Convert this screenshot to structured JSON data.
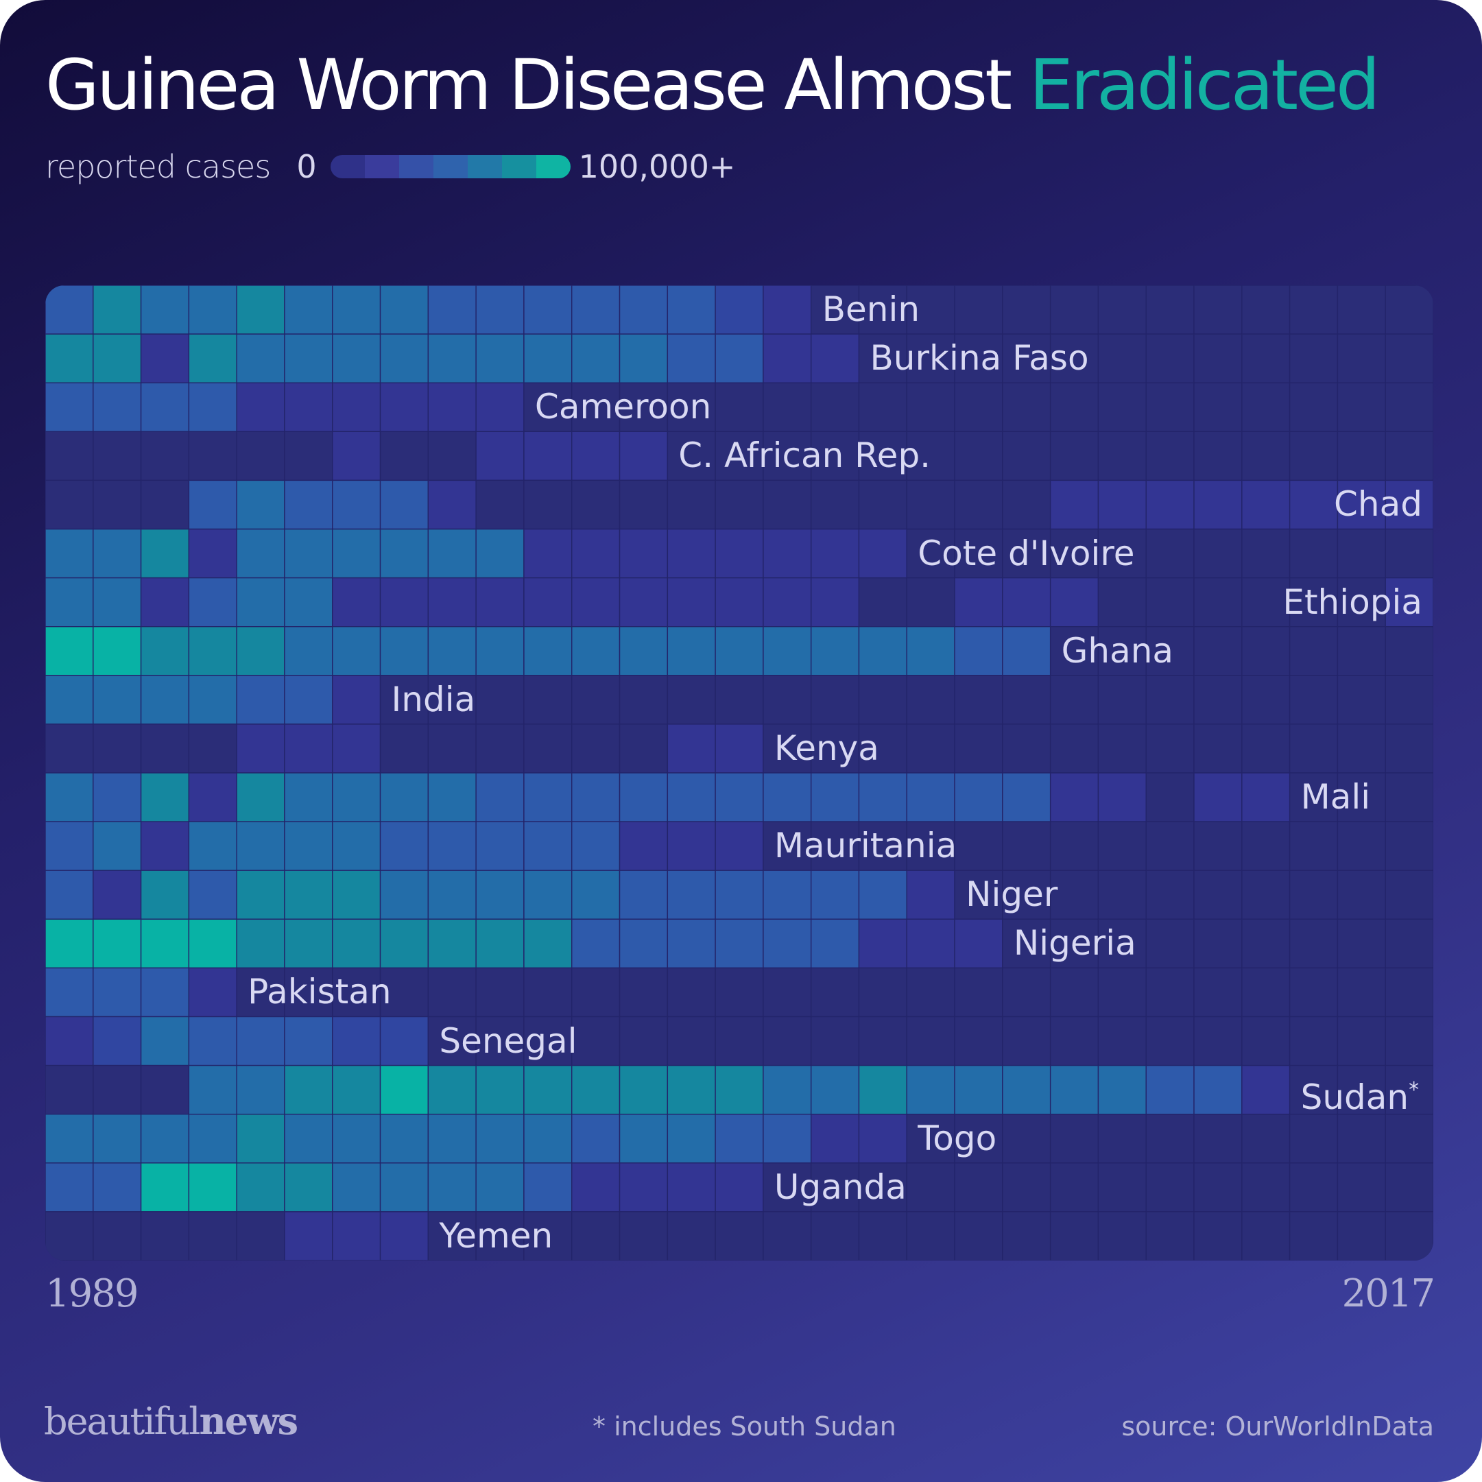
{
  "title": {
    "main": "Guinea Worm Disease Almost ",
    "accent": "Eradicated"
  },
  "legend": {
    "label": "reported cases",
    "min": "0",
    "max": "100,000+",
    "colors": [
      "#2f3189",
      "#3a3c9c",
      "#3551a8",
      "#2f63ad",
      "#2279a8",
      "#16909f",
      "#0fb4a3"
    ]
  },
  "palette": {
    "card_top": "#120c3a",
    "card_bottom": "#3f44a4",
    "accent": "#13b1a2",
    "level_colors": [
      "#2b2d78",
      "#333593",
      "#3046a1",
      "#2e5aab",
      "#236da9",
      "#15879f",
      "#08b2a5"
    ]
  },
  "chart_data": {
    "type": "heatmap",
    "title": "Guinea Worm Disease Almost Eradicated",
    "x_range": [
      1989,
      2017
    ],
    "x_labels": [
      "1989",
      "2017"
    ],
    "value_scale": "binned reported cases, level 0 (0) to 6 (100,000+)",
    "rows": [
      {
        "name": "Benin",
        "levels": [
          3,
          5,
          4,
          4,
          5,
          4,
          4,
          4,
          3,
          3,
          3,
          3,
          3,
          3,
          2,
          1,
          0,
          0,
          0,
          0,
          0,
          0,
          0,
          0,
          0,
          0,
          0,
          0,
          0
        ]
      },
      {
        "name": "Burkina Faso",
        "levels": [
          5,
          5,
          1,
          5,
          4,
          4,
          4,
          4,
          4,
          4,
          4,
          4,
          4,
          3,
          3,
          1,
          1,
          0,
          0,
          0,
          0,
          0,
          0,
          0,
          0,
          0,
          0,
          0,
          0
        ]
      },
      {
        "name": "Cameroon",
        "levels": [
          3,
          3,
          3,
          3,
          1,
          1,
          1,
          1,
          1,
          1,
          0,
          0,
          0,
          0,
          0,
          0,
          0,
          0,
          0,
          0,
          0,
          0,
          0,
          0,
          0,
          0,
          0,
          0,
          0
        ]
      },
      {
        "name": "C. African Rep.",
        "levels": [
          0,
          0,
          0,
          0,
          0,
          0,
          1,
          0,
          0,
          1,
          1,
          1,
          1,
          0,
          0,
          0,
          0,
          0,
          0,
          0,
          0,
          0,
          0,
          0,
          0,
          0,
          0,
          0,
          0
        ]
      },
      {
        "name": "Chad",
        "levels": [
          0,
          0,
          0,
          3,
          4,
          3,
          3,
          3,
          1,
          0,
          0,
          0,
          0,
          0,
          0,
          0,
          0,
          0,
          0,
          0,
          0,
          1,
          1,
          1,
          1,
          1,
          1,
          1,
          1
        ]
      },
      {
        "name": "Cote d'Ivoire",
        "levels": [
          4,
          4,
          5,
          1,
          4,
          4,
          4,
          4,
          4,
          4,
          1,
          1,
          1,
          1,
          1,
          1,
          1,
          1,
          0,
          0,
          0,
          0,
          0,
          0,
          0,
          0,
          0,
          0,
          0
        ]
      },
      {
        "name": "Ethiopia",
        "levels": [
          4,
          4,
          1,
          3,
          4,
          4,
          1,
          1,
          1,
          1,
          1,
          1,
          1,
          1,
          1,
          1,
          1,
          0,
          0,
          1,
          1,
          1,
          0,
          0,
          0,
          0,
          0,
          0,
          1
        ]
      },
      {
        "name": "Ghana",
        "levels": [
          6,
          6,
          5,
          5,
          5,
          4,
          4,
          4,
          4,
          4,
          4,
          4,
          4,
          4,
          4,
          4,
          4,
          4,
          4,
          3,
          3,
          0,
          0,
          0,
          0,
          0,
          0,
          0,
          0
        ]
      },
      {
        "name": "India",
        "levels": [
          4,
          4,
          4,
          4,
          3,
          3,
          1,
          0,
          0,
          0,
          0,
          0,
          0,
          0,
          0,
          0,
          0,
          0,
          0,
          0,
          0,
          0,
          0,
          0,
          0,
          0,
          0,
          0,
          0
        ]
      },
      {
        "name": "Kenya",
        "levels": [
          0,
          0,
          0,
          0,
          1,
          1,
          1,
          0,
          0,
          0,
          0,
          0,
          0,
          1,
          1,
          0,
          0,
          0,
          0,
          0,
          0,
          0,
          0,
          0,
          0,
          0,
          0,
          0,
          0
        ]
      },
      {
        "name": "Mali",
        "levels": [
          4,
          3,
          5,
          1,
          5,
          4,
          4,
          4,
          4,
          3,
          3,
          3,
          3,
          3,
          3,
          3,
          3,
          3,
          3,
          3,
          3,
          1,
          1,
          0,
          1,
          1,
          0,
          0,
          0
        ]
      },
      {
        "name": "Mauritania",
        "levels": [
          3,
          4,
          1,
          4,
          4,
          4,
          4,
          3,
          3,
          3,
          3,
          3,
          1,
          1,
          1,
          0,
          0,
          0,
          0,
          0,
          0,
          0,
          0,
          0,
          0,
          0,
          0,
          0,
          0
        ]
      },
      {
        "name": "Niger",
        "levels": [
          3,
          1,
          5,
          3,
          5,
          5,
          5,
          4,
          4,
          4,
          4,
          4,
          3,
          3,
          3,
          3,
          3,
          3,
          1,
          0,
          0,
          0,
          0,
          0,
          0,
          0,
          0,
          0,
          0
        ]
      },
      {
        "name": "Nigeria",
        "levels": [
          6,
          6,
          6,
          6,
          5,
          5,
          5,
          5,
          5,
          5,
          5,
          3,
          3,
          3,
          3,
          3,
          3,
          1,
          1,
          1,
          0,
          0,
          0,
          0,
          0,
          0,
          0,
          0,
          0
        ]
      },
      {
        "name": "Pakistan",
        "levels": [
          3,
          3,
          3,
          1,
          0,
          0,
          0,
          0,
          0,
          0,
          0,
          0,
          0,
          0,
          0,
          0,
          0,
          0,
          0,
          0,
          0,
          0,
          0,
          0,
          0,
          0,
          0,
          0,
          0
        ]
      },
      {
        "name": "Senegal",
        "levels": [
          1,
          2,
          4,
          3,
          3,
          3,
          2,
          2,
          0,
          0,
          0,
          0,
          0,
          0,
          0,
          0,
          0,
          0,
          0,
          0,
          0,
          0,
          0,
          0,
          0,
          0,
          0,
          0,
          0
        ]
      },
      {
        "name": "Sudan",
        "levels": [
          0,
          0,
          0,
          4,
          4,
          5,
          5,
          6,
          5,
          5,
          5,
          5,
          5,
          5,
          5,
          4,
          4,
          5,
          4,
          4,
          4,
          4,
          4,
          3,
          3,
          1,
          0,
          0,
          0
        ]
      },
      {
        "name": "Togo",
        "levels": [
          4,
          4,
          4,
          4,
          5,
          4,
          4,
          4,
          4,
          4,
          4,
          3,
          4,
          4,
          3,
          3,
          1,
          1,
          0,
          0,
          0,
          0,
          0,
          0,
          0,
          0,
          0,
          0,
          0
        ]
      },
      {
        "name": "Uganda",
        "levels": [
          3,
          3,
          6,
          6,
          5,
          5,
          4,
          4,
          4,
          4,
          3,
          1,
          1,
          1,
          1,
          0,
          0,
          0,
          0,
          0,
          0,
          0,
          0,
          0,
          0,
          0,
          0,
          0,
          0
        ]
      },
      {
        "name": "Yemen",
        "levels": [
          0,
          0,
          0,
          0,
          0,
          1,
          1,
          1,
          0,
          0,
          0,
          0,
          0,
          0,
          0,
          0,
          0,
          0,
          0,
          0,
          0,
          0,
          0,
          0,
          0,
          0,
          0,
          0,
          0
        ]
      }
    ],
    "row_label_suffix": {
      "Sudan": "*"
    },
    "annotations": [
      "* includes South Sudan"
    ]
  },
  "footer": {
    "brand_light": "beautiful",
    "brand_bold": "news",
    "footnote": "* includes South Sudan",
    "source": "source: OurWorldInData"
  }
}
